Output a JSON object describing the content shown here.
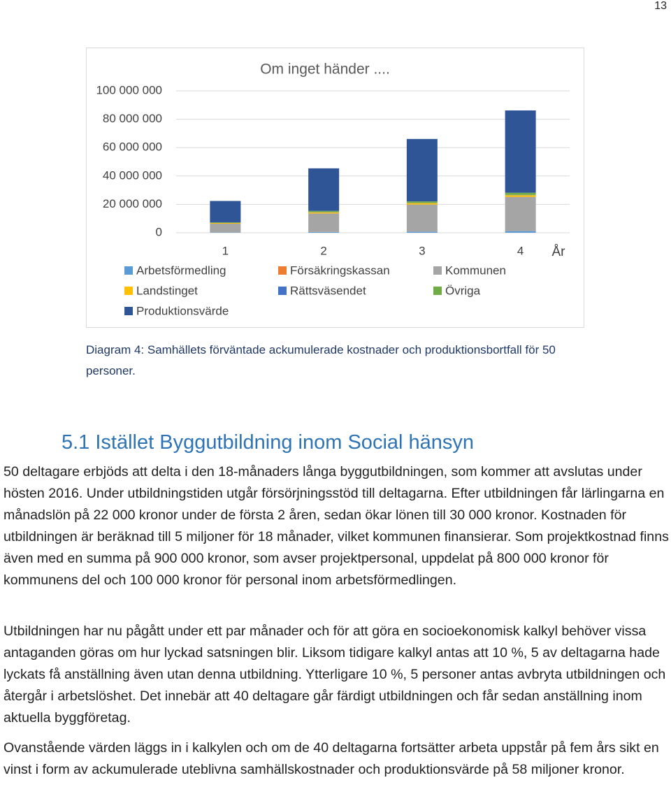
{
  "page_number": "13",
  "chart_data": {
    "type": "stacked-bar",
    "title": "Om inget händer ....",
    "x_label": "År",
    "categories": [
      "1",
      "2",
      "3",
      "4"
    ],
    "ylim": [
      0,
      100000000
    ],
    "yticks": [
      {
        "value": 0,
        "label": "0"
      },
      {
        "value": 20000000,
        "label": "20 000 000"
      },
      {
        "value": 40000000,
        "label": "40 000 000"
      },
      {
        "value": 60000000,
        "label": "60 000 000"
      },
      {
        "value": 80000000,
        "label": "80 000 000"
      },
      {
        "value": 100000000,
        "label": "100 000 000"
      }
    ],
    "grid": true,
    "series": [
      {
        "name": "Arbetsförmedling",
        "color": "#5b9bd5",
        "values": [
          300000,
          500000,
          800000,
          1200000
        ]
      },
      {
        "name": "Försäkringskassan",
        "color": "#ed7d31",
        "values": [
          100000,
          100000,
          100000,
          100000
        ]
      },
      {
        "name": "Kommunen",
        "color": "#a5a5a5",
        "values": [
          6000000,
          13000000,
          19000000,
          24000000
        ]
      },
      {
        "name": "Landstinget",
        "color": "#ffc000",
        "values": [
          500000,
          800000,
          1000000,
          1200000
        ]
      },
      {
        "name": "Rättsväsendet",
        "color": "#4472c4",
        "values": [
          200000,
          200000,
          200000,
          200000
        ]
      },
      {
        "name": "Övriga",
        "color": "#70ad47",
        "values": [
          300000,
          800000,
          1000000,
          1500000
        ]
      },
      {
        "name": "Produktionsvärde",
        "color": "#2f5597",
        "values": [
          15000000,
          30000000,
          44000000,
          58000000
        ]
      }
    ]
  },
  "caption": "Diagram 4: Samhällets förväntade ackumulerade kostnader och produktionsbortfall för 50 personer.",
  "heading": "5.1 Istället Byggutbildning inom Social hänsyn",
  "paragraphs": [
    "50 deltagare erbjöds att delta i den 18-månaders långa byggutbildningen, som kommer att avslutas under hösten 2016. Under utbildningstiden utgår försörjningsstöd till deltagarna. Efter utbildningen får lärlingarna en månadslön på 22 000 kronor under de första 2 åren, sedan ökar lönen till 30 000 kronor. Kostnaden för utbildningen är beräknad till 5 miljoner för 18 månader, vilket kommunen finansierar. Som projektkostnad finns även med en summa på 900 000 kronor, som avser projektpersonal, uppdelat på 800 000 kronor för kommunens del och 100 000 kronor för personal inom arbetsförmedlingen.",
    "Utbildningen har nu pågått under ett par månader och för att göra en socioekonomisk kalkyl behöver vissa antaganden göras om hur lyckad satsningen blir. Liksom tidigare kalkyl antas att 10 %, 5 av deltagarna hade lyckats få anställning även utan denna utbildning. Ytterligare 10 %, 5 personer antas avbryta utbildningen och återgår i arbetslöshet. Det innebär att 40 deltagare går färdigt utbildningen och får sedan anställning inom aktuella byggföretag.",
    "Ovanstående värden läggs in i kalkylen och om de 40 deltagarna fortsätter arbeta uppstår på fem års sikt en vinst i form av ackumulerade uteblivna samhällskostnader och produktionsvärde på 58 miljoner kronor."
  ]
}
